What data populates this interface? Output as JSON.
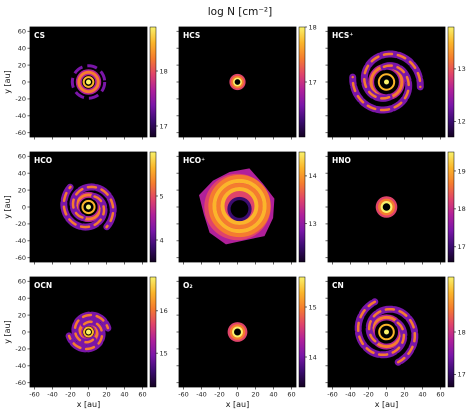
{
  "figure": {
    "title": "log N [cm⁻²]"
  },
  "chart_data": {
    "type": "heatmap",
    "xlabel": "x [au]",
    "ylabel": "y [au]",
    "xlim": [
      -65,
      65
    ],
    "ylim": [
      -65,
      65
    ],
    "x_ticks": [
      "-60",
      "-40",
      "-20",
      "0",
      "20",
      "40",
      "60"
    ],
    "y_ticks": [
      "-60",
      "-40",
      "-20",
      "0",
      "20",
      "40",
      "60"
    ],
    "colormap": [
      "#120221",
      "#3b0c70",
      "#7a16a8",
      "#b0209a",
      "#e0446a",
      "#f57c2e",
      "#fbb52a",
      "#f9f16a"
    ],
    "background_color": "#000000",
    "panels": [
      {
        "species": "CS",
        "structure": "ring",
        "extent_au": 18,
        "cbar_range": [
          16.8,
          18.8
        ],
        "cbar_ticks": [
          "17",
          "18"
        ]
      },
      {
        "species": "HCS",
        "structure": "compact",
        "extent_au": 9,
        "cbar_range": [
          16.0,
          18.0
        ],
        "cbar_ticks": [
          "17",
          "18"
        ]
      },
      {
        "species": "HCS⁺",
        "structure": "spiral",
        "extent_au": 38,
        "cbar_range": [
          11.7,
          13.8
        ],
        "cbar_ticks": [
          "12",
          "13"
        ]
      },
      {
        "species": "HCO",
        "structure": "spiral",
        "extent_au": 30,
        "cbar_range": [
          3.5,
          6.0
        ],
        "cbar_ticks": [
          "4",
          "5"
        ]
      },
      {
        "species": "HCO⁺",
        "structure": "disk",
        "extent_au": 45,
        "cbar_range": [
          12.2,
          14.5
        ],
        "cbar_ticks": [
          "13",
          "14"
        ]
      },
      {
        "species": "HNO",
        "structure": "compact",
        "extent_au": 12,
        "cbar_range": [
          16.6,
          19.5
        ],
        "cbar_ticks": [
          "17",
          "18",
          "19"
        ]
      },
      {
        "species": "OCN",
        "structure": "spiral-ring",
        "extent_au": 22,
        "cbar_range": [
          14.2,
          16.8
        ],
        "cbar_ticks": [
          "15",
          "16"
        ]
      },
      {
        "species": "O₂",
        "structure": "compact",
        "extent_au": 11,
        "cbar_range": [
          13.4,
          15.6
        ],
        "cbar_ticks": [
          "14",
          "15"
        ]
      },
      {
        "species": "CN",
        "structure": "spiral",
        "extent_au": 36,
        "cbar_range": [
          16.7,
          19.3
        ],
        "cbar_ticks": [
          "17",
          "18"
        ]
      }
    ]
  }
}
